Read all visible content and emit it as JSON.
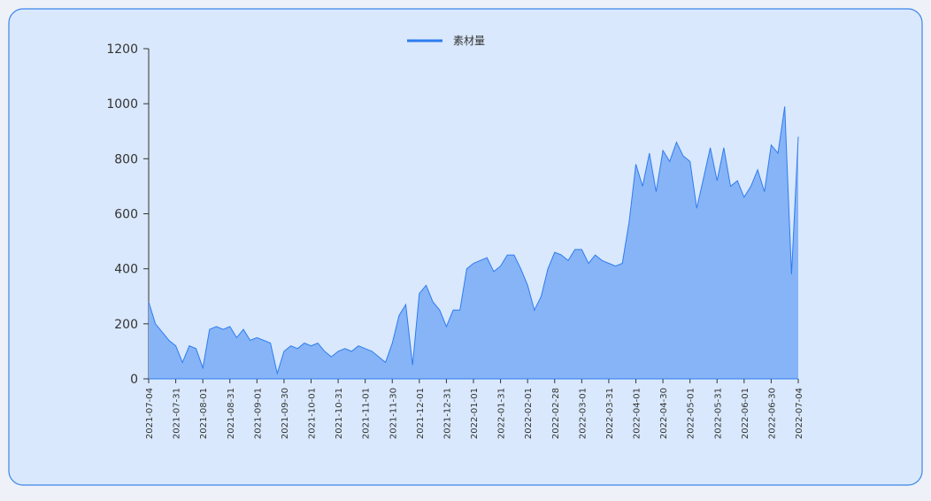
{
  "chart_data": {
    "type": "area",
    "categories": [
      "2021-07-04",
      null,
      null,
      null,
      "2021-07-31",
      null,
      null,
      null,
      "2021-08-01",
      null,
      null,
      null,
      "2021-08-31",
      null,
      null,
      null,
      "2021-09-01",
      null,
      null,
      null,
      "2021-09-30",
      null,
      null,
      null,
      "2021-10-01",
      null,
      null,
      null,
      "2021-10-31",
      null,
      null,
      null,
      "2021-11-01",
      null,
      null,
      null,
      "2021-11-30",
      null,
      null,
      null,
      "2021-12-01",
      null,
      null,
      null,
      "2021-12-31",
      null,
      null,
      null,
      "2022-01-01",
      null,
      null,
      null,
      "2022-01-31",
      null,
      null,
      null,
      "2022-02-01",
      null,
      null,
      null,
      "2022-02-28",
      null,
      null,
      null,
      "2022-03-01",
      null,
      null,
      null,
      "2022-03-31",
      null,
      null,
      null,
      "2022-04-01",
      null,
      null,
      null,
      "2022-04-30",
      null,
      null,
      null,
      "2022-05-01",
      null,
      null,
      null,
      "2022-05-31",
      null,
      null,
      null,
      "2022-06-01",
      null,
      null,
      null,
      "2022-06-30",
      null,
      null,
      null,
      "2022-07-04"
    ],
    "series": [
      {
        "name": "素材量",
        "color": "#2f7cf0",
        "fill": "#86b4f7",
        "values": [
          280,
          200,
          170,
          140,
          120,
          60,
          120,
          110,
          40,
          180,
          190,
          180,
          190,
          150,
          180,
          140,
          150,
          140,
          130,
          20,
          100,
          120,
          110,
          130,
          120,
          130,
          100,
          80,
          100,
          110,
          100,
          120,
          110,
          100,
          80,
          60,
          130,
          230,
          270,
          50,
          310,
          340,
          280,
          250,
          190,
          250,
          250,
          400,
          420,
          430,
          440,
          390,
          410,
          450,
          450,
          400,
          340,
          250,
          300,
          400,
          460,
          450,
          430,
          470,
          470,
          420,
          450,
          430,
          420,
          410,
          420,
          570,
          780,
          700,
          820,
          680,
          830,
          790,
          860,
          810,
          790,
          620,
          730,
          840,
          720,
          840,
          700,
          720,
          660,
          700,
          760,
          680,
          850,
          820,
          990,
          380,
          880
        ]
      }
    ],
    "ylim": [
      0,
      1200
    ],
    "yticks": [
      0,
      200,
      400,
      600,
      800,
      1000,
      1200
    ]
  }
}
